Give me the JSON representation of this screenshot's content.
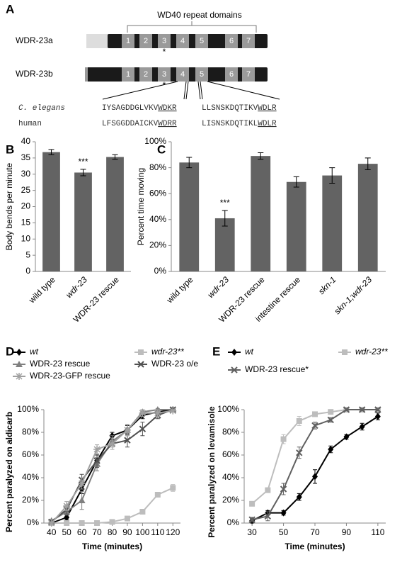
{
  "panel_a": {
    "label": "A",
    "title": "WD40 repeat domains",
    "proteins": [
      {
        "name": "WDR-23a",
        "domains": [
          "1",
          "2",
          "3",
          "4",
          "5",
          "6",
          "7"
        ],
        "mark": "*"
      },
      {
        "name": "WDR-23b",
        "domains": [
          "1",
          "2",
          "3",
          "4",
          "5",
          "6",
          "7"
        ],
        "mark": "*"
      }
    ],
    "alignment": [
      {
        "species": "C. elegans",
        "left": [
          "IYSAGDDGLVKV",
          "WDKR"
        ],
        "right": [
          "LLSNSKDQTIKV",
          "WDLR"
        ]
      },
      {
        "species": "human",
        "left": [
          "LFSGGDDAICKV",
          "WDRR"
        ],
        "right": [
          "LISNSKDQTIKL",
          "WDLR"
        ]
      }
    ]
  },
  "chart_data": [
    {
      "type": "bar",
      "panel_label": "B",
      "y_label": "Body bends per minute",
      "color": "#636363",
      "categories": [
        "wild type",
        "wdr-23",
        "WDR-23 rescue"
      ],
      "category_style": [
        "normal",
        "italic",
        "normal"
      ],
      "values": [
        36.8,
        30.5,
        35.3
      ],
      "errors": [
        0.8,
        1.0,
        0.7
      ],
      "ylim": [
        0,
        40
      ],
      "yticks": [
        0,
        5,
        10,
        15,
        20,
        25,
        30,
        35,
        40
      ],
      "annotations": [
        {
          "text": "***",
          "category": "wdr-23"
        }
      ]
    },
    {
      "type": "bar",
      "panel_label": "C",
      "y_label": "Percent time moving",
      "color": "#636363",
      "categories": [
        "wild type",
        "wdr-23",
        "WDR-23 rescue",
        "intestine rescue",
        "skn-1",
        "skn-1;wdr-23"
      ],
      "category_style": [
        "normal",
        "italic",
        "normal",
        "normal",
        "italic",
        "italic"
      ],
      "values": [
        84,
        41,
        89,
        69,
        74,
        83
      ],
      "errors": [
        4,
        6,
        2.5,
        4,
        6,
        4.5
      ],
      "ylim": [
        0,
        100
      ],
      "yticks": [
        {
          "value": 0,
          "label": "0%"
        },
        {
          "value": 20,
          "label": "20%"
        },
        {
          "value": 40,
          "label": "40%"
        },
        {
          "value": 60,
          "label": "60%"
        },
        {
          "value": 80,
          "label": "80%"
        },
        {
          "value": 100,
          "label": "100%"
        }
      ],
      "annotations": [
        {
          "text": "***",
          "category": "wdr-23"
        }
      ]
    },
    {
      "type": "line",
      "panel_label": "D",
      "x_label": "Time (minutes)",
      "y_label": "Percent paralyzed on aldicarb",
      "x": [
        40,
        50,
        60,
        70,
        80,
        90,
        100,
        110,
        120
      ],
      "series": [
        {
          "name": "wt",
          "color": "#000000",
          "marker": "diamond",
          "values": [
            0,
            5,
            30,
            55,
            77,
            82,
            95,
            98,
            100
          ],
          "errors": [
            1,
            2,
            4,
            5,
            3,
            4,
            3,
            2,
            1
          ]
        },
        {
          "name": "wdr-23**",
          "color": "#bdbdbd",
          "marker": "square",
          "values": [
            0,
            0,
            0,
            0,
            1,
            4,
            10,
            25,
            31
          ],
          "errors": [
            0,
            0,
            0,
            0,
            1,
            1,
            2,
            2,
            3
          ]
        },
        {
          "name": "WDR-23 rescue",
          "color": "#808080",
          "marker": "triangle",
          "values": [
            2,
            10,
            20,
            52,
            72,
            82,
            98,
            100,
            100
          ],
          "errors": [
            1,
            3,
            8,
            6,
            5,
            5,
            2,
            1,
            1
          ]
        },
        {
          "name": "WDR-23 o/e",
          "color": "#505050",
          "marker": "x",
          "values": [
            1,
            12,
            38,
            55,
            70,
            73,
            83,
            95,
            100
          ],
          "errors": [
            1,
            4,
            5,
            6,
            5,
            6,
            6,
            3,
            1
          ]
        },
        {
          "name": "WDR-23-GFP rescue",
          "color": "#a0a0a0",
          "marker": "star",
          "values": [
            0,
            15,
            35,
            65,
            70,
            82,
            97,
            97,
            99
          ],
          "errors": [
            1,
            4,
            5,
            4,
            5,
            5,
            3,
            3,
            1
          ]
        }
      ],
      "xlim": [
        35,
        125
      ],
      "xticks": [
        40,
        50,
        60,
        70,
        80,
        90,
        100,
        110,
        120
      ],
      "ylim": [
        0,
        100
      ],
      "yticks": [
        {
          "value": 0,
          "label": "0%"
        },
        {
          "value": 20,
          "label": "20%"
        },
        {
          "value": 40,
          "label": "40%"
        },
        {
          "value": 60,
          "label": "60%"
        },
        {
          "value": 80,
          "label": "80%"
        },
        {
          "value": 100,
          "label": "100%"
        }
      ]
    },
    {
      "type": "line",
      "panel_label": "E",
      "x_label": "Time (minutes)",
      "y_label": "Percent paralyzed on levamisole",
      "x": [
        30,
        40,
        50,
        60,
        70,
        80,
        90,
        100,
        110
      ],
      "series": [
        {
          "name": "wt",
          "color": "#000000",
          "marker": "diamond",
          "values": [
            2,
            9,
            9,
            23,
            41,
            65,
            76,
            85,
            94
          ],
          "errors": [
            2,
            2,
            2,
            3,
            6,
            3,
            2,
            3,
            3
          ]
        },
        {
          "name": "wdr-23**",
          "color": "#bdbdbd",
          "marker": "square",
          "values": [
            17,
            29,
            74,
            90,
            96,
            98,
            100,
            100,
            100
          ],
          "errors": [
            2,
            2,
            4,
            4,
            2,
            1,
            1,
            1,
            1
          ]
        },
        {
          "name": "WDR-23 rescue*",
          "color": "#606060",
          "marker": "x",
          "values": [
            3,
            6,
            30,
            62,
            86,
            91,
            100,
            100,
            100
          ],
          "errors": [
            2,
            4,
            5,
            5,
            3,
            2,
            1,
            1,
            1
          ]
        }
      ],
      "xlim": [
        25,
        115
      ],
      "xticks": [
        30,
        50,
        70,
        90,
        110
      ],
      "ylim": [
        0,
        100
      ],
      "yticks": [
        {
          "value": 0,
          "label": "0%"
        },
        {
          "value": 20,
          "label": "20%"
        },
        {
          "value": 40,
          "label": "40%"
        },
        {
          "value": 60,
          "label": "60%"
        },
        {
          "value": 80,
          "label": "80%"
        },
        {
          "value": 100,
          "label": "100%"
        }
      ]
    }
  ]
}
